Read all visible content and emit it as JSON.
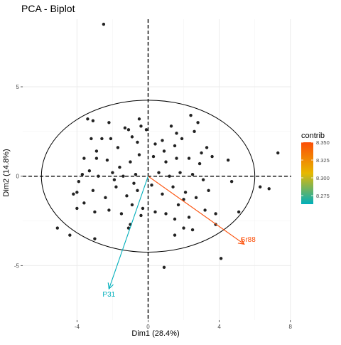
{
  "chart_data": {
    "type": "scatter",
    "title": "PCA - Biplot",
    "xlabel": "Dim1 (28.4%)",
    "ylabel": "Dim2 (14.8%)",
    "xlim": [
      -7.05,
      8.05
    ],
    "ylim": [
      -8.05,
      8.78
    ],
    "x_ticks": [
      -4,
      0,
      4,
      8
    ],
    "y_ticks": [
      -5,
      0,
      5
    ],
    "grid": true,
    "ellipse": {
      "cx": 0,
      "cy": 0,
      "rx": 6,
      "ry": 4.25
    },
    "points": [
      [
        -2.5,
        8.5
      ],
      [
        -3.1,
        3.1
      ],
      [
        -2.2,
        3.0
      ],
      [
        -1.3,
        2.7
      ],
      [
        -0.4,
        2.8
      ],
      [
        -0.1,
        2.6
      ],
      [
        1.3,
        2.8
      ],
      [
        2.4,
        3.4
      ],
      [
        2.8,
        3.0
      ],
      [
        0.8,
        2.0
      ],
      [
        -3.2,
        2.1
      ],
      [
        -2.6,
        2.1
      ],
      [
        -2.1,
        2.1
      ],
      [
        -1.7,
        1.6
      ],
      [
        -1.1,
        2.6
      ],
      [
        -0.9,
        2.2
      ],
      [
        -0.6,
        1.9
      ],
      [
        0.4,
        1.8
      ],
      [
        1.5,
        1.7
      ],
      [
        1.9,
        2.1
      ],
      [
        2.6,
        2.5
      ],
      [
        -3.6,
        1.0
      ],
      [
        -2.9,
        1.0
      ],
      [
        -2.3,
        0.9
      ],
      [
        -1.6,
        0.5
      ],
      [
        -1.0,
        0.8
      ],
      [
        -0.5,
        1.2
      ],
      [
        0.3,
        1.1
      ],
      [
        1.0,
        0.8
      ],
      [
        1.6,
        1.0
      ],
      [
        2.3,
        1.0
      ],
      [
        3.0,
        1.3
      ],
      [
        3.6,
        1.1
      ],
      [
        -3.3,
        0.3
      ],
      [
        -2.8,
        0.0
      ],
      [
        -2.0,
        0.2
      ],
      [
        -1.4,
        0.0
      ],
      [
        -0.7,
        0.1
      ],
      [
        0.6,
        0.2
      ],
      [
        1.2,
        0.0
      ],
      [
        1.8,
        0.2
      ],
      [
        2.5,
        0.1
      ],
      [
        3.1,
        -0.2
      ],
      [
        -3.9,
        -0.3
      ],
      [
        -3.1,
        -0.8
      ],
      [
        -2.4,
        -1.2
      ],
      [
        -1.8,
        -0.6
      ],
      [
        -1.2,
        -1.1
      ],
      [
        -0.6,
        -0.8
      ],
      [
        0.2,
        -0.5
      ],
      [
        0.8,
        -1.0
      ],
      [
        1.4,
        -0.6
      ],
      [
        2.1,
        -0.9
      ],
      [
        2.7,
        -1.2
      ],
      [
        3.4,
        -0.8
      ],
      [
        -3.6,
        -1.5
      ],
      [
        -3.0,
        -2.0
      ],
      [
        -2.2,
        -1.9
      ],
      [
        -1.5,
        -2.1
      ],
      [
        -0.9,
        -1.6
      ],
      [
        -0.3,
        -1.8
      ],
      [
        0.4,
        -2.0
      ],
      [
        1.0,
        -2.1
      ],
      [
        1.7,
        -1.6
      ],
      [
        2.3,
        -2.3
      ],
      [
        -4.2,
        -1.0
      ],
      [
        -1.0,
        -2.7
      ],
      [
        -0.4,
        -2.2
      ],
      [
        1.5,
        -2.4
      ],
      [
        2.0,
        -2.9
      ],
      [
        -5.1,
        -2.9
      ],
      [
        -4.4,
        -3.3
      ],
      [
        -3.0,
        -3.5
      ],
      [
        1.5,
        -3.3
      ],
      [
        2.5,
        -3.0
      ],
      [
        3.8,
        -2.1
      ],
      [
        5.1,
        -2.0
      ],
      [
        6.3,
        -0.6
      ],
      [
        6.8,
        -0.7
      ],
      [
        7.3,
        1.3
      ],
      [
        -1.1,
        -2.9
      ],
      [
        4.1,
        -4.6
      ],
      [
        0.9,
        -5.1
      ],
      [
        -2.9,
        1.4
      ],
      [
        -3.7,
        0.1
      ],
      [
        -1.9,
        -0.2
      ],
      [
        -0.8,
        -0.4
      ],
      [
        0.9,
        1.4
      ],
      [
        1.6,
        2.4
      ],
      [
        2.9,
        0.7
      ],
      [
        3.3,
        1.6
      ],
      [
        4.5,
        0.9
      ],
      [
        4.7,
        -0.3
      ],
      [
        -3.4,
        3.2
      ],
      [
        -0.5,
        3.2
      ],
      [
        3.2,
        -1.9
      ],
      [
        3.8,
        -2.7
      ],
      [
        2.0,
        -1.3
      ],
      [
        -4.0,
        -0.9
      ],
      [
        -4.0,
        -1.8
      ]
    ],
    "arrows": [
      {
        "label": "Sr88",
        "x": 5.4,
        "y": -3.8,
        "contrib": 8.35
      },
      {
        "label": "P31",
        "x": -2.2,
        "y": -6.3,
        "contrib": 8.263
      }
    ],
    "legend": {
      "title": "contrib",
      "ticks": [
        8.35,
        8.325,
        8.3,
        8.275
      ],
      "tick_labels": [
        "8.350",
        "8.325",
        "8.300",
        "8.275"
      ],
      "range": [
        8.263,
        8.35
      ],
      "colors": [
        "#00AFBB",
        "#E7B800",
        "#FC4E07"
      ],
      "placement": "right"
    },
    "colors": {
      "points": "#222222",
      "ellipse": "#000000"
    }
  }
}
